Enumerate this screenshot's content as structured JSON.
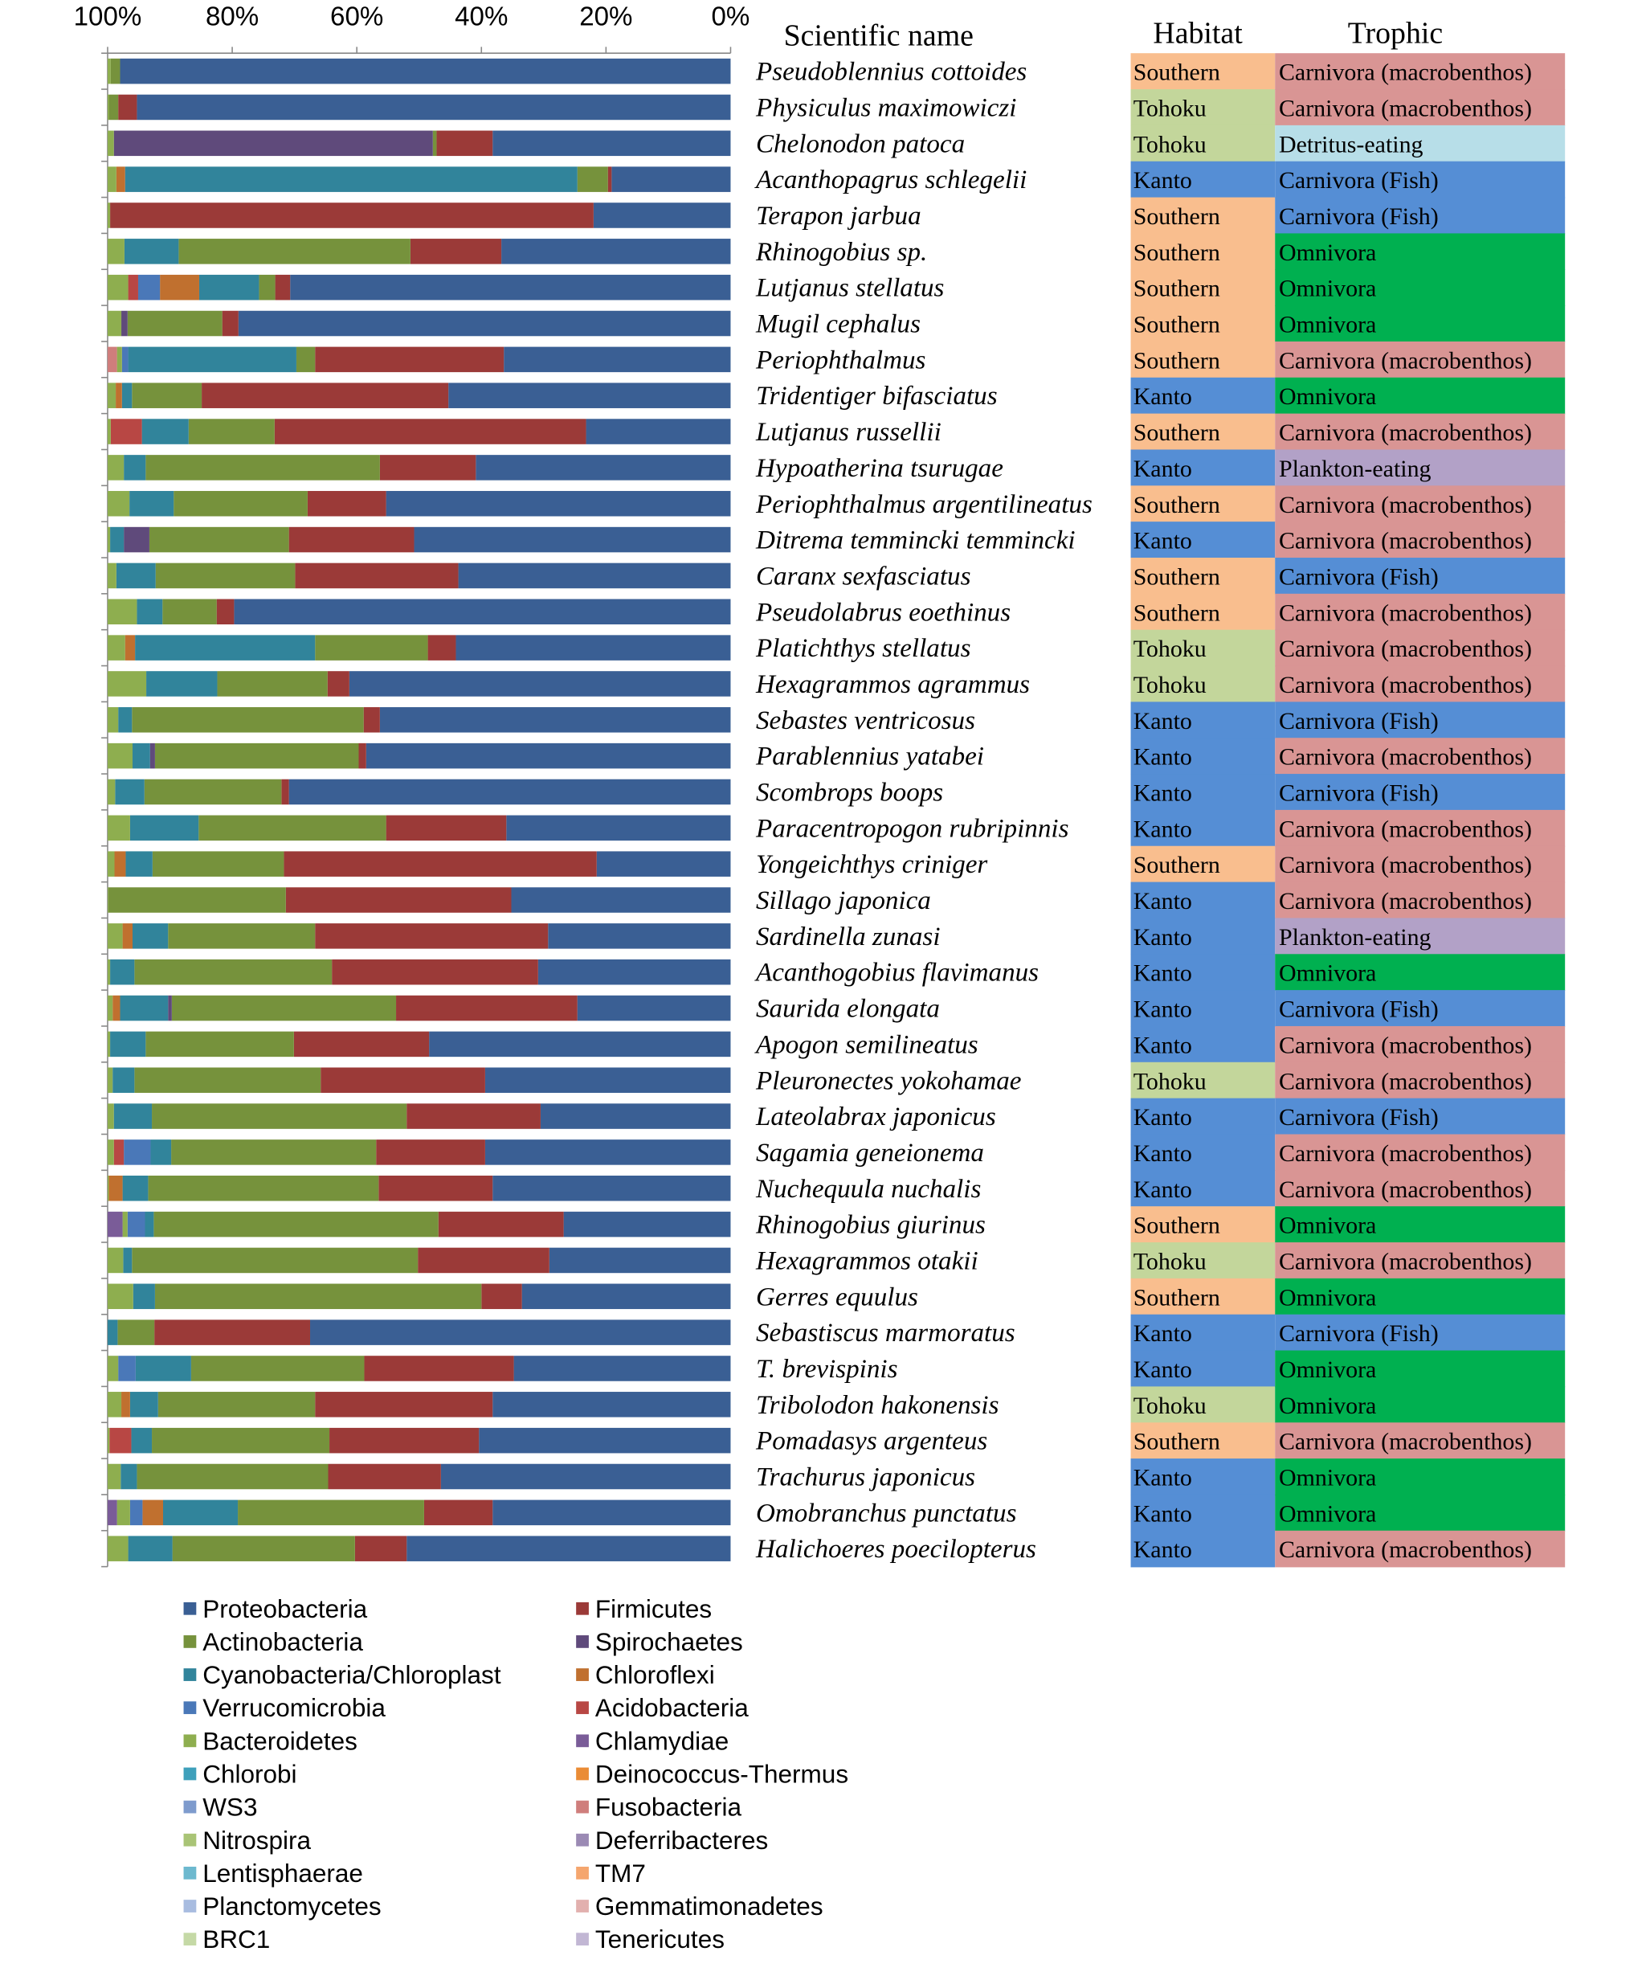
{
  "chart_data": {
    "type": "bar",
    "orientation": "horizontal-stacked-percent",
    "x_axis": {
      "ticks": [
        "100%",
        "80%",
        "60%",
        "40%",
        "20%",
        "0%"
      ],
      "range": [
        100,
        0
      ],
      "reversed": true
    },
    "grid": false,
    "legend_position": "bottom",
    "headers": {
      "name": "Scientific name",
      "habitat": "Habitat",
      "trophic": "Trophic"
    },
    "rows": [
      {
        "name": "Pseudoblennius cottoides",
        "habitat": "Southern",
        "trophic": "Carnivora (macrobenthos)"
      },
      {
        "name": "Physiculus maximowiczi",
        "habitat": "Tohoku",
        "trophic": "Carnivora (macrobenthos)"
      },
      {
        "name": "Chelonodon patoca",
        "habitat": "Tohoku",
        "trophic": "Detritus-eating"
      },
      {
        "name": "Acanthopagrus schlegelii",
        "habitat": "Kanto",
        "trophic": "Carnivora (Fish)"
      },
      {
        "name": "Terapon jarbua",
        "habitat": "Southern",
        "trophic": "Carnivora (Fish)"
      },
      {
        "name": "Rhinogobius sp.",
        "habitat": "Southern",
        "trophic": "Omnivora"
      },
      {
        "name": "Lutjanus stellatus",
        "habitat": "Southern",
        "trophic": "Omnivora"
      },
      {
        "name": "Mugil cephalus",
        "habitat": "Southern",
        "trophic": "Omnivora"
      },
      {
        "name": "Periophthalmus",
        "habitat": "Southern",
        "trophic": "Carnivora (macrobenthos)"
      },
      {
        "name": "Tridentiger bifasciatus",
        "habitat": "Kanto",
        "trophic": "Omnivora"
      },
      {
        "name": "Lutjanus russellii",
        "habitat": "Southern",
        "trophic": "Carnivora (macrobenthos)"
      },
      {
        "name": "Hypoatherina tsurugae",
        "habitat": "Kanto",
        "trophic": "Plankton-eating"
      },
      {
        "name": "Periophthalmus argentilineatus",
        "habitat": "Southern",
        "trophic": "Carnivora (macrobenthos)"
      },
      {
        "name": "Ditrema temmincki temmincki",
        "habitat": "Kanto",
        "trophic": "Carnivora (macrobenthos)"
      },
      {
        "name": "Caranx sexfasciatus",
        "habitat": "Southern",
        "trophic": "Carnivora (Fish)"
      },
      {
        "name": "Pseudolabrus eoethinus",
        "habitat": "Southern",
        "trophic": "Carnivora (macrobenthos)"
      },
      {
        "name": "Platichthys stellatus",
        "habitat": "Tohoku",
        "trophic": "Carnivora (macrobenthos)"
      },
      {
        "name": "Hexagrammos agrammus",
        "habitat": "Tohoku",
        "trophic": "Carnivora (macrobenthos)"
      },
      {
        "name": "Sebastes ventricosus",
        "habitat": "Kanto",
        "trophic": "Carnivora (Fish)"
      },
      {
        "name": "Parablennius yatabei",
        "habitat": "Kanto",
        "trophic": "Carnivora (macrobenthos)"
      },
      {
        "name": "Scombrops boops",
        "habitat": "Kanto",
        "trophic": "Carnivora (Fish)"
      },
      {
        "name": "Paracentropogon rubripinnis",
        "habitat": "Kanto",
        "trophic": "Carnivora (macrobenthos)"
      },
      {
        "name": "Yongeichthys criniger",
        "habitat": "Southern",
        "trophic": "Carnivora (macrobenthos)"
      },
      {
        "name": "Sillago japonica",
        "habitat": "Kanto",
        "trophic": "Carnivora (macrobenthos)"
      },
      {
        "name": "Sardinella zunasi",
        "habitat": "Kanto",
        "trophic": "Plankton-eating"
      },
      {
        "name": "Acanthogobius flavimanus",
        "habitat": "Kanto",
        "trophic": "Omnivora"
      },
      {
        "name": "Saurida elongata",
        "habitat": "Kanto",
        "trophic": "Carnivora (Fish)"
      },
      {
        "name": "Apogon semilineatus",
        "habitat": "Kanto",
        "trophic": "Carnivora (macrobenthos)"
      },
      {
        "name": "Pleuronectes yokohamae",
        "habitat": "Tohoku",
        "trophic": "Carnivora (macrobenthos)"
      },
      {
        "name": "Lateolabrax japonicus",
        "habitat": "Kanto",
        "trophic": "Carnivora (Fish)"
      },
      {
        "name": "Sagamia geneionema",
        "habitat": "Kanto",
        "trophic": "Carnivora (macrobenthos)"
      },
      {
        "name": "Nuchequula nuchalis",
        "habitat": "Kanto",
        "trophic": "Carnivora (macrobenthos)"
      },
      {
        "name": "Rhinogobius giurinus",
        "habitat": "Southern",
        "trophic": "Omnivora"
      },
      {
        "name": "Hexagrammos otakii",
        "habitat": "Tohoku",
        "trophic": "Carnivora (macrobenthos)"
      },
      {
        "name": "Gerres equulus",
        "habitat": "Southern",
        "trophic": "Omnivora"
      },
      {
        "name": "Sebastiscus marmoratus",
        "habitat": "Kanto",
        "trophic": "Carnivora (Fish)"
      },
      {
        "name": "T. brevispinis",
        "habitat": "Kanto",
        "trophic": "Omnivora"
      },
      {
        "name": "Tribolodon hakonensis",
        "habitat": "Tohoku",
        "trophic": "Omnivora"
      },
      {
        "name": "Pomadasys argenteus",
        "habitat": "Southern",
        "trophic": "Carnivora (macrobenthos)"
      },
      {
        "name": "Trachurus japonicus",
        "habitat": "Kanto",
        "trophic": "Omnivora"
      },
      {
        "name": "Omobranchus punctatus",
        "habitat": "Kanto",
        "trophic": "Omnivora"
      },
      {
        "name": "Halichoeres poecilopterus",
        "habitat": "Kanto",
        "trophic": "Carnivora (macrobenthos)"
      }
    ],
    "habitat_colors": {
      "Southern": "#F9BE8E",
      "Tohoku": "#C3D69B",
      "Kanto": "#558ED5"
    },
    "trophic_colors": {
      "Carnivora (macrobenthos)": "#D99594",
      "Detritus-eating": "#B7DEE8",
      "Carnivora (Fish)": "#558ED5",
      "Omnivora": "#00B050",
      "Plankton-eating": "#B2A1C7"
    },
    "series": [
      {
        "name": "Proteobacteria",
        "color": "#3A5F94",
        "values": [
          98,
          95.3,
          38.2,
          19.1,
          22,
          36.8,
          70.7,
          79,
          36.4,
          45.3,
          23.2,
          40.9,
          55.3,
          50.8,
          43.7,
          79.7,
          44.1,
          61.2,
          56.3,
          58.5,
          70.9,
          36,
          21.5,
          35.2,
          29.3,
          30.9,
          24.6,
          48.4,
          39.4,
          30.5,
          39.4,
          38.2,
          26.8,
          29.1,
          33.5,
          67.5,
          34.8,
          38.2,
          40.4,
          46.5,
          38.2,
          52
        ]
      },
      {
        "name": "Firmicutes",
        "color": "#9B3A38",
        "values": [
          0,
          3,
          9,
          0.6,
          77.6,
          14.6,
          2.4,
          2.6,
          30.3,
          39.6,
          50,
          15.4,
          12.6,
          20.1,
          26.2,
          2.8,
          4.5,
          3.5,
          2.6,
          1.2,
          1.2,
          19.3,
          50.2,
          36.2,
          37.4,
          33.1,
          29.1,
          21.7,
          26.4,
          21.5,
          17.5,
          18.3,
          20.1,
          21.1,
          6.5,
          25,
          24,
          28.5,
          24,
          18.1,
          11,
          8.3
        ]
      },
      {
        "name": "Actinobacteria",
        "color": "#76923C",
        "values": [
          1.5,
          1.5,
          0.6,
          4.9,
          0,
          37.2,
          2.6,
          15.2,
          3,
          11.2,
          13.8,
          37.6,
          21.5,
          22.4,
          22.4,
          8.7,
          18.1,
          17.7,
          37.2,
          32.7,
          22,
          30.1,
          21.1,
          28.5,
          23.6,
          31.7,
          36,
          23.8,
          29.9,
          40.9,
          32.9,
          37,
          45.7,
          45.9,
          52.4,
          5.9,
          27.8,
          25.2,
          28.5,
          30.7,
          29.9,
          29.3
        ]
      },
      {
        "name": "Spirochaetes",
        "color": "#5F4A7B",
        "values": [
          0,
          0,
          51.2,
          0,
          0,
          0,
          0,
          1,
          0,
          0,
          0,
          0,
          0,
          4.1,
          0,
          0,
          0,
          0,
          0,
          0.8,
          0,
          0,
          0,
          0,
          0,
          0,
          0.6,
          0,
          0,
          0,
          0,
          0,
          0,
          0,
          0,
          0,
          0,
          0,
          0,
          0,
          0,
          0
        ]
      },
      {
        "name": "Cyanobacteria/Chloroplast",
        "color": "#31849B",
        "values": [
          0,
          0,
          0,
          72.6,
          0,
          8.7,
          9.6,
          0,
          27,
          1.6,
          7.5,
          3.5,
          7.1,
          2.2,
          6.3,
          4.1,
          28.9,
          11.4,
          2.2,
          2.8,
          4.7,
          11,
          4.3,
          0,
          5.7,
          3.9,
          7.7,
          5.7,
          3.5,
          6.1,
          3.3,
          4.1,
          1.4,
          1.4,
          3.5,
          1.6,
          8.9,
          4.5,
          3.3,
          2.6,
          12,
          7.1
        ]
      },
      {
        "name": "Chloroflexi",
        "color": "#C0702F",
        "values": [
          0,
          0,
          0,
          1.4,
          0,
          0,
          6.3,
          0,
          0,
          1,
          0,
          0,
          0,
          0,
          0,
          0,
          1.6,
          0,
          0,
          0,
          0,
          0,
          1.8,
          0,
          1.6,
          0,
          1.2,
          0,
          0,
          0,
          0,
          2.2,
          0,
          0,
          0,
          0,
          0,
          1.4,
          0,
          0,
          3.3,
          0
        ]
      },
      {
        "name": "Verrucomicrobia",
        "color": "#4A78B8",
        "values": [
          0,
          0,
          0,
          0,
          0,
          0,
          3.5,
          0,
          1,
          0,
          0,
          0,
          0,
          0,
          0,
          0,
          0,
          0,
          0,
          0,
          0,
          0,
          0,
          0,
          0,
          0,
          0,
          0,
          0,
          0,
          4.3,
          0,
          2.8,
          0,
          0,
          0,
          2.8,
          0,
          0,
          0,
          2,
          0
        ]
      },
      {
        "name": "Acidobacteria",
        "color": "#B84744",
        "values": [
          0,
          0,
          0,
          0,
          0,
          0,
          1.6,
          0,
          0,
          0,
          5,
          0,
          0,
          0,
          0,
          0,
          0,
          0,
          0,
          0,
          0,
          0,
          0,
          0,
          0,
          0,
          0,
          0,
          0,
          0,
          1.6,
          0,
          0,
          0,
          0,
          0,
          0,
          0,
          3.5,
          0,
          0,
          0
        ]
      },
      {
        "name": "Bacteroidetes",
        "color": "#8EAE4F",
        "values": [
          0.5,
          0.2,
          1,
          1.4,
          0.4,
          2.7,
          3.3,
          2.2,
          0.8,
          1.3,
          0.5,
          2.6,
          3.5,
          0.4,
          1.4,
          4.7,
          2.8,
          6.2,
          1.7,
          4,
          1.2,
          3.6,
          1.1,
          0.1,
          2.4,
          0.4,
          0.8,
          0.4,
          0.8,
          1,
          1,
          0.2,
          0.8,
          2.5,
          4.1,
          0,
          1.7,
          2.2,
          0.3,
          2.1,
          2.1,
          3.3
        ]
      },
      {
        "name": "Chlamydiae",
        "color": "#7A5C98",
        "values": [
          0,
          0,
          0,
          0,
          0,
          0,
          0,
          0,
          0,
          0,
          0,
          0,
          0,
          0,
          0,
          0,
          0,
          0,
          0,
          0,
          0,
          0,
          0,
          0,
          0,
          0,
          0,
          0,
          0,
          0,
          0,
          0,
          2.4,
          0,
          0,
          0,
          0,
          0,
          0,
          0,
          1.5,
          0
        ]
      },
      {
        "name": "Chlorobi",
        "color": "#3EA0BB",
        "values": []
      },
      {
        "name": "Deinococcus-Thermus",
        "color": "#EA8C36",
        "values": []
      },
      {
        "name": "WS3",
        "color": "#7E9BCD",
        "values": []
      },
      {
        "name": "Fusobacteria",
        "color": "#CF7E7C",
        "values": [
          0,
          0,
          0,
          0,
          0,
          0,
          0,
          0,
          1.5,
          0,
          0,
          0,
          0,
          0,
          0,
          0,
          0,
          0,
          0,
          0,
          0,
          0,
          0,
          0,
          0,
          0,
          0,
          0,
          0,
          0,
          0,
          0,
          0,
          0,
          0,
          0,
          0,
          0,
          0,
          0,
          0,
          0
        ]
      },
      {
        "name": "Nitrospira",
        "color": "#A9C476",
        "values": []
      },
      {
        "name": "Deferribacteres",
        "color": "#9B8AB4",
        "values": []
      },
      {
        "name": "Lentisphaerae",
        "color": "#6DB9CF",
        "values": []
      },
      {
        "name": "TM7",
        "color": "#F5A66E",
        "values": []
      },
      {
        "name": "Planctomycetes",
        "color": "#A8BCE0",
        "values": []
      },
      {
        "name": "Gemmatimonadetes",
        "color": "#E2B0AE",
        "values": []
      },
      {
        "name": "BRC1",
        "color": "#C5D9A6",
        "values": []
      },
      {
        "name": "Tenericutes",
        "color": "#C2B7D4",
        "values": []
      }
    ]
  }
}
